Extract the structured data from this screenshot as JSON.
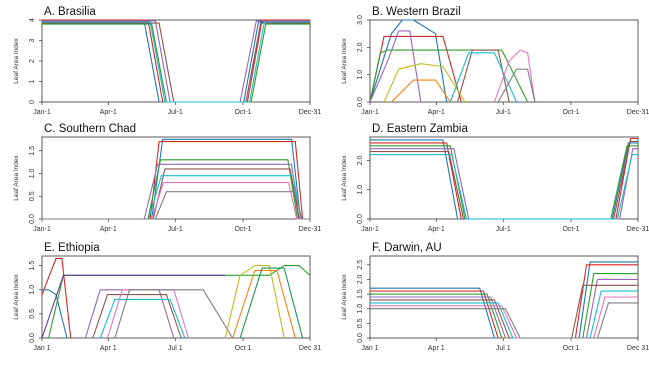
{
  "figure": {
    "x_categories": [
      "Jan-1",
      "Apr-1",
      "Jul-1",
      "Oct-1",
      "Dec-31"
    ],
    "ylabel": "Leaf Area Index"
  },
  "chart_data": [
    {
      "type": "line",
      "title": "A. Brasilia",
      "xlabel": "",
      "ylabel": "Leaf Area Index",
      "x_ticks": [
        "Jan-1",
        "Apr-1",
        "Jul-1",
        "Oct-1",
        "Dec-31"
      ],
      "x_tick_days": [
        1,
        91,
        182,
        274,
        365
      ],
      "xlim": [
        1,
        365
      ],
      "ylim": [
        0,
        4
      ],
      "y_ticks": [
        "0",
        "1",
        "2",
        "3",
        "4"
      ],
      "series": [
        {
          "days": [
            1,
            140,
            160,
            275,
            295,
            365
          ],
          "values": [
            3.9,
            3.9,
            0,
            0,
            3.9,
            3.9
          ]
        },
        {
          "days": [
            1,
            145,
            165,
            280,
            300,
            365
          ],
          "values": [
            4.0,
            4.0,
            0,
            0,
            4.0,
            4.0
          ]
        },
        {
          "days": [
            1,
            150,
            170,
            285,
            305,
            365
          ],
          "values": [
            3.8,
            3.8,
            0,
            0,
            3.8,
            3.8
          ]
        },
        {
          "days": [
            1,
            155,
            175,
            270,
            292,
            365
          ],
          "values": [
            3.95,
            3.95,
            0,
            0,
            3.95,
            3.95
          ]
        },
        {
          "days": [
            1,
            160,
            180,
            278,
            298,
            365
          ],
          "values": [
            3.85,
            3.85,
            0,
            0,
            3.85,
            3.85
          ]
        },
        {
          "days": [
            1,
            148,
            168,
            283,
            303,
            365
          ],
          "values": [
            3.9,
            3.9,
            0,
            0,
            3.9,
            3.9
          ]
        }
      ]
    },
    {
      "type": "line",
      "title": "B. Western Brazil",
      "xlabel": "",
      "ylabel": "Leaf Area Index",
      "x_ticks": [
        "Jan-1",
        "Apr-1",
        "Jul-1",
        "Oct-1",
        "Dec-31"
      ],
      "x_tick_days": [
        1,
        91,
        182,
        274,
        365
      ],
      "xlim": [
        1,
        365
      ],
      "ylim": [
        0,
        3
      ],
      "y_ticks": [
        "0.0",
        "1.0",
        "2.0",
        "3.0"
      ],
      "series": [
        {
          "days": [
            1,
            30,
            45,
            60,
            90,
            105
          ],
          "values": [
            0,
            2.5,
            3.0,
            3.0,
            2.5,
            0
          ]
        },
        {
          "days": [
            1,
            20,
            40,
            100,
            125
          ],
          "values": [
            0,
            2.4,
            2.4,
            2.4,
            0
          ]
        },
        {
          "days": [
            1,
            15,
            25,
            180,
            215
          ],
          "values": [
            0,
            1.8,
            1.9,
            1.9,
            0
          ]
        },
        {
          "days": [
            1,
            25,
            40,
            55,
            70
          ],
          "values": [
            0,
            1.5,
            2.6,
            2.6,
            0
          ]
        },
        {
          "days": [
            120,
            140,
            160,
            175,
            190
          ],
          "values": [
            0,
            1.9,
            1.9,
            1.9,
            0
          ]
        },
        {
          "days": [
            110,
            135,
            170,
            200
          ],
          "values": [
            0,
            1.8,
            1.8,
            0
          ]
        },
        {
          "days": [
            170,
            190,
            205,
            215,
            225
          ],
          "values": [
            0,
            1.5,
            1.9,
            1.8,
            0
          ]
        },
        {
          "days": [
            175,
            200,
            215,
            225
          ],
          "values": [
            0,
            1.2,
            1.2,
            0
          ]
        },
        {
          "days": [
            20,
            40,
            70,
            100,
            130
          ],
          "values": [
            0,
            1.2,
            1.4,
            1.3,
            0
          ]
        },
        {
          "days": [
            30,
            60,
            90,
            110
          ],
          "values": [
            0,
            0.8,
            0.8,
            0
          ]
        }
      ]
    },
    {
      "type": "line",
      "title": "C. Southern Chad",
      "xlabel": "",
      "ylabel": "Leaf Area Index",
      "x_ticks": [
        "Jan-1",
        "Apr-1",
        "Jul-1",
        "Oct-1",
        "Dec-31"
      ],
      "x_tick_days": [
        1,
        91,
        182,
        274,
        365
      ],
      "xlim": [
        1,
        365
      ],
      "ylim": [
        0,
        1.8
      ],
      "y_ticks": [
        "0.0",
        "0.5",
        "1.0",
        "1.5"
      ],
      "series": [
        {
          "days": [
            1,
            150,
            165,
            340,
            352,
            365
          ],
          "values": [
            0,
            0,
            1.75,
            1.75,
            0,
            0
          ]
        },
        {
          "days": [
            1,
            148,
            160,
            345,
            355,
            365
          ],
          "values": [
            0,
            0,
            1.7,
            1.7,
            0,
            0
          ]
        },
        {
          "days": [
            1,
            145,
            162,
            335,
            348,
            365
          ],
          "values": [
            0,
            0,
            1.3,
            1.3,
            0,
            0
          ]
        },
        {
          "days": [
            1,
            140,
            158,
            340,
            350,
            365
          ],
          "values": [
            0,
            0,
            1.2,
            1.2,
            0,
            0
          ]
        },
        {
          "days": [
            1,
            152,
            168,
            338,
            350,
            365
          ],
          "values": [
            0,
            0,
            1.1,
            1.1,
            0,
            0
          ]
        },
        {
          "days": [
            1,
            146,
            163,
            342,
            353,
            365
          ],
          "values": [
            0,
            0,
            0.95,
            0.95,
            0,
            0
          ]
        },
        {
          "days": [
            1,
            150,
            166,
            336,
            347,
            365
          ],
          "values": [
            0,
            0,
            0.8,
            0.8,
            0,
            0
          ]
        },
        {
          "days": [
            1,
            155,
            170,
            344,
            354,
            365
          ],
          "values": [
            0,
            0,
            0.6,
            0.6,
            0,
            0
          ]
        }
      ]
    },
    {
      "type": "line",
      "title": "D. Eastern Zambia",
      "xlabel": "",
      "ylabel": "Leaf Area Index",
      "x_ticks": [
        "Jan-1",
        "Apr-1",
        "Jul-1",
        "Oct-1",
        "Dec-31"
      ],
      "x_tick_days": [
        1,
        91,
        182,
        274,
        365
      ],
      "xlim": [
        1,
        365
      ],
      "ylim": [
        0,
        2.8
      ],
      "y_ticks": [
        "0.0",
        "1.0",
        "2.0"
      ],
      "series": [
        {
          "days": [
            1,
            100,
            120,
            330,
            352,
            365
          ],
          "values": [
            2.7,
            2.7,
            0,
            0,
            2.6,
            2.6
          ]
        },
        {
          "days": [
            1,
            105,
            125,
            335,
            355,
            365
          ],
          "values": [
            2.6,
            2.6,
            0,
            0,
            2.75,
            2.75
          ]
        },
        {
          "days": [
            1,
            110,
            130,
            328,
            350,
            365
          ],
          "values": [
            2.5,
            2.5,
            0,
            0,
            2.5,
            2.5
          ]
        },
        {
          "days": [
            1,
            115,
            135,
            340,
            358,
            365
          ],
          "values": [
            2.4,
            2.4,
            0,
            0,
            2.4,
            2.4
          ]
        },
        {
          "days": [
            1,
            108,
            128,
            332,
            354,
            365
          ],
          "values": [
            2.3,
            2.3,
            0,
            0,
            2.65,
            2.65
          ]
        },
        {
          "days": [
            1,
            112,
            132,
            337,
            357,
            365
          ],
          "values": [
            2.2,
            2.2,
            0,
            0,
            2.2,
            2.2
          ]
        }
      ]
    },
    {
      "type": "line",
      "title": "E. Ethiopia",
      "xlabel": "",
      "ylabel": "Leaf Area Index",
      "x_ticks": [
        "Jan 1",
        "Apr 1",
        "Jul 1",
        "Oct 1",
        "Dec 31"
      ],
      "x_tick_days": [
        1,
        91,
        182,
        274,
        365
      ],
      "xlim": [
        1,
        365
      ],
      "ylim": [
        0,
        1.7
      ],
      "y_ticks": [
        "0.0",
        "0.5",
        "1.0",
        "1.5"
      ],
      "series": [
        {
          "days": [
            1,
            10,
            20,
            35
          ],
          "values": [
            1.0,
            1.0,
            0.9,
            0
          ]
        },
        {
          "days": [
            1,
            20,
            28,
            40
          ],
          "values": [
            0.9,
            1.65,
            1.65,
            0
          ]
        },
        {
          "days": [
            10,
            30,
            290,
            310,
            330,
            350,
            365
          ],
          "values": [
            0,
            1.3,
            1.3,
            1.3,
            1.5,
            1.5,
            1.3
          ]
        },
        {
          "days": [
            60,
            80,
            160,
            180
          ],
          "values": [
            0,
            1.0,
            1.0,
            0
          ]
        },
        {
          "days": [
            70,
            90,
            170,
            190
          ],
          "values": [
            0,
            0.9,
            0.9,
            0
          ]
        },
        {
          "days": [
            80,
            100,
            175,
            195
          ],
          "values": [
            0,
            0.8,
            0.8,
            0
          ]
        },
        {
          "days": [
            90,
            110,
            180,
            200
          ],
          "values": [
            0,
            1.0,
            1.0,
            0
          ]
        },
        {
          "days": [
            100,
            120,
            200,
            220,
            260
          ],
          "values": [
            0,
            1.0,
            1.0,
            1.0,
            0
          ]
        },
        {
          "days": [
            250,
            270,
            290,
            310,
            330
          ],
          "values": [
            0,
            1.3,
            1.5,
            1.5,
            0
          ]
        },
        {
          "days": [
            260,
            290,
            320,
            345
          ],
          "values": [
            0,
            1.4,
            1.4,
            0
          ]
        },
        {
          "days": [
            270,
            300,
            330,
            355
          ],
          "values": [
            0,
            1.45,
            1.45,
            0
          ]
        },
        {
          "days": [
            1,
            30,
            200,
            250
          ],
          "values": [
            0,
            1.3,
            1.3,
            1.3
          ]
        }
      ]
    },
    {
      "type": "line",
      "title": "F. Darwin, AU",
      "xlabel": "",
      "ylabel": "Leaf Area Index",
      "x_ticks": [
        "Jan 1",
        "Apr 1",
        "Jul 1",
        "Oct 1",
        "Dec 31"
      ],
      "x_tick_days": [
        1,
        91,
        182,
        274,
        365
      ],
      "xlim": [
        1,
        365
      ],
      "ylim": [
        0,
        2.8
      ],
      "y_ticks": [
        "0.0",
        "0.5",
        "1.0",
        "1.5",
        "2.0",
        "2.5"
      ],
      "series": [
        {
          "days": [
            1,
            150,
            170,
            285,
            300,
            365
          ],
          "values": [
            1.7,
            1.7,
            0,
            0,
            2.6,
            2.6
          ]
        },
        {
          "days": [
            1,
            155,
            175,
            280,
            295,
            365
          ],
          "values": [
            1.6,
            1.6,
            0,
            0,
            2.5,
            2.5
          ]
        },
        {
          "days": [
            1,
            160,
            180,
            290,
            305,
            365
          ],
          "values": [
            1.5,
            1.5,
            0,
            0,
            2.2,
            2.2
          ]
        },
        {
          "days": [
            1,
            165,
            185,
            295,
            310,
            365
          ],
          "values": [
            1.4,
            1.4,
            0,
            0,
            2.0,
            2.0
          ]
        },
        {
          "days": [
            1,
            170,
            190,
            275,
            290,
            365
          ],
          "values": [
            1.3,
            1.3,
            0,
            0,
            1.8,
            1.8
          ]
        },
        {
          "days": [
            1,
            175,
            195,
            300,
            315,
            365
          ],
          "values": [
            1.2,
            1.2,
            0,
            0,
            1.6,
            1.6
          ]
        },
        {
          "days": [
            1,
            180,
            200,
            305,
            320,
            365
          ],
          "values": [
            1.1,
            1.1,
            0,
            0,
            1.4,
            1.4
          ]
        },
        {
          "days": [
            1,
            185,
            205,
            310,
            325,
            365
          ],
          "values": [
            1.0,
            1.0,
            0,
            0,
            1.2,
            1.2
          ]
        }
      ]
    }
  ],
  "colors": {
    "palette": [
      "#1f77b4",
      "#d62728",
      "#2ca02c",
      "#9467bd",
      "#8c564b",
      "#17becf",
      "#e377c2",
      "#7f7f7f",
      "#bcbd22",
      "#ff7f0e",
      "#1a9850",
      "#6a3d9a"
    ]
  }
}
